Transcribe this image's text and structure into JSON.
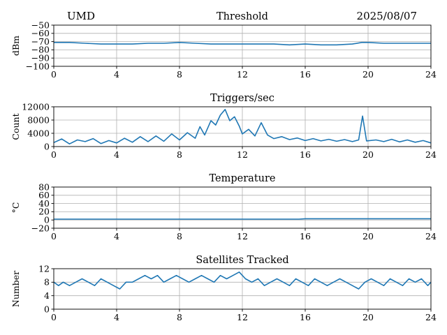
{
  "header": {
    "site": "UMD",
    "date": "2025/08/07"
  },
  "colors": {
    "line": "#1f77b4",
    "grid": "#b0b0b0",
    "axis": "#000000"
  },
  "chart_data": [
    {
      "type": "line",
      "title": "Threshold",
      "xlabel": "",
      "ylabel": "dBm",
      "xlim": [
        0,
        24
      ],
      "ylim": [
        -100,
        -50
      ],
      "xticks": [
        0,
        4,
        8,
        12,
        16,
        20,
        24
      ],
      "yticks": [
        -50,
        -60,
        -70,
        -80,
        -90,
        -100
      ],
      "grid": true,
      "x": [
        0,
        1,
        2,
        3,
        4,
        5,
        6,
        7,
        8,
        9,
        10,
        11,
        12,
        13,
        14,
        15,
        16,
        17,
        18,
        19,
        19.6,
        20,
        21,
        22,
        23,
        24
      ],
      "y": [
        -71,
        -71,
        -72,
        -73,
        -73,
        -73,
        -72,
        -72,
        -71,
        -72,
        -73,
        -73,
        -73,
        -73,
        -73,
        -74,
        -73,
        -74,
        -74,
        -73,
        -71,
        -71,
        -72,
        -72,
        -72,
        -72
      ]
    },
    {
      "type": "line",
      "title": "Triggers/sec",
      "xlabel": "",
      "ylabel": "Count",
      "xlim": [
        0,
        24
      ],
      "ylim": [
        0,
        12000
      ],
      "xticks": [
        0,
        4,
        8,
        12,
        16,
        20,
        24
      ],
      "yticks": [
        0,
        4000,
        8000,
        12000
      ],
      "grid": true,
      "x": [
        0,
        0.5,
        1,
        1.5,
        2,
        2.5,
        3,
        3.5,
        4,
        4.5,
        5,
        5.5,
        6,
        6.5,
        7,
        7.5,
        8,
        8.5,
        9,
        9.3,
        9.6,
        10,
        10.3,
        10.6,
        10.9,
        11.2,
        11.5,
        11.8,
        12,
        12.4,
        12.8,
        13.2,
        13.6,
        14,
        14.5,
        15,
        15.5,
        16,
        16.5,
        17,
        17.5,
        18,
        18.5,
        19,
        19.4,
        19.65,
        19.9,
        20.5,
        21,
        21.5,
        22,
        22.5,
        23,
        23.5,
        24
      ],
      "y": [
        1200,
        2300,
        800,
        2000,
        1500,
        2400,
        900,
        1800,
        1100,
        2500,
        1300,
        3000,
        1500,
        3200,
        1600,
        3800,
        2000,
        4200,
        2500,
        6000,
        3500,
        7800,
        6500,
        9500,
        11200,
        7800,
        9000,
        6200,
        3800,
        5200,
        3200,
        7200,
        3500,
        2400,
        3000,
        2100,
        2600,
        1800,
        2400,
        1700,
        2200,
        1600,
        2100,
        1500,
        2000,
        9200,
        1700,
        2000,
        1500,
        2200,
        1400,
        2000,
        1300,
        1800,
        1100
      ]
    },
    {
      "type": "line",
      "title": "Temperature",
      "xlabel": "",
      "ylabel": "°C",
      "xlim": [
        0,
        24
      ],
      "ylim": [
        -20,
        80
      ],
      "xticks": [
        0,
        4,
        8,
        12,
        16,
        20,
        24
      ],
      "yticks": [
        -20,
        0,
        20,
        40,
        60,
        80
      ],
      "grid": true,
      "x": [
        0,
        4,
        8,
        12,
        15.6,
        16,
        20,
        24
      ],
      "y": [
        2,
        2,
        2,
        2,
        2,
        3,
        3,
        3
      ]
    },
    {
      "type": "line",
      "title": "Satellites Tracked",
      "xlabel": "",
      "ylabel": "Number",
      "xlim": [
        0,
        24
      ],
      "ylim": [
        0,
        12
      ],
      "xticks": [
        0,
        4,
        8,
        12,
        16,
        20,
        24
      ],
      "yticks": [
        0,
        4,
        8,
        12
      ],
      "grid": true,
      "x": [
        0,
        0.3,
        0.6,
        1,
        1.4,
        1.8,
        2.2,
        2.6,
        3,
        3.4,
        3.8,
        4.2,
        4.6,
        5,
        5.4,
        5.8,
        6.2,
        6.6,
        7,
        7.4,
        7.8,
        8.2,
        8.6,
        9,
        9.4,
        9.8,
        10.2,
        10.6,
        11,
        11.4,
        11.8,
        12.2,
        12.6,
        13,
        13.4,
        13.8,
        14.2,
        14.6,
        15,
        15.4,
        15.8,
        16.2,
        16.6,
        17,
        17.4,
        17.8,
        18.2,
        18.6,
        19,
        19.4,
        19.8,
        20.2,
        20.6,
        21,
        21.4,
        21.8,
        22.2,
        22.6,
        23,
        23.4,
        23.8,
        24
      ],
      "y": [
        8,
        7,
        8,
        7,
        8,
        9,
        8,
        7,
        9,
        8,
        7,
        6,
        8,
        8,
        9,
        10,
        9,
        10,
        8,
        9,
        10,
        9,
        8,
        9,
        10,
        9,
        8,
        10,
        9,
        10,
        11,
        9,
        8,
        9,
        7,
        8,
        9,
        8,
        7,
        9,
        8,
        7,
        9,
        8,
        7,
        8,
        9,
        8,
        7,
        6,
        8,
        9,
        8,
        7,
        9,
        8,
        7,
        9,
        8,
        9,
        7,
        8
      ]
    }
  ]
}
